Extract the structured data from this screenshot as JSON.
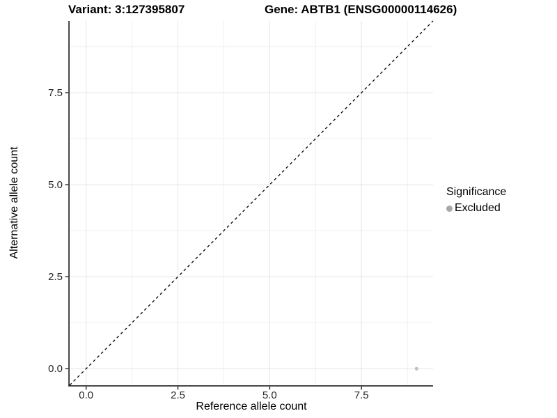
{
  "titles": {
    "variant_title": "Variant: 3:127395807",
    "gene_title": "Gene: ABTB1 (ENSG00000114626)"
  },
  "legend": {
    "title": "Significance",
    "items": [
      {
        "label": "Excluded",
        "color": "#A8A8A8"
      }
    ]
  },
  "chart_data": {
    "type": "scatter",
    "title": "",
    "xlabel": "Reference allele count",
    "ylabel": "Alternative allele count",
    "xlim": [
      -0.45,
      9.45
    ],
    "ylim": [
      -0.45,
      9.45
    ],
    "xticks": [
      0.0,
      2.5,
      5.0,
      7.5
    ],
    "yticks": [
      0.0,
      2.5,
      5.0,
      7.5
    ],
    "minor_ticks_x": [
      1.25,
      3.75,
      6.25,
      8.75
    ],
    "minor_ticks_y": [
      1.25,
      3.75,
      6.25,
      8.75
    ],
    "tick_label_decimals": 1,
    "grid": true,
    "legend_position": "right",
    "reference_line": {
      "kind": "identity",
      "style": "dashed",
      "color": "#000000"
    },
    "series": [
      {
        "name": "Excluded",
        "marker": "circle",
        "color": "#C2C2C2",
        "size": 2.6,
        "points": [
          [
            9,
            0
          ]
        ]
      }
    ]
  },
  "colors": {
    "background": "#FFFFFF",
    "axis_line": "#303030",
    "grid_major": "#E4E4E4",
    "grid_minor": "#EFEFEF",
    "tick_text": "#262626"
  }
}
